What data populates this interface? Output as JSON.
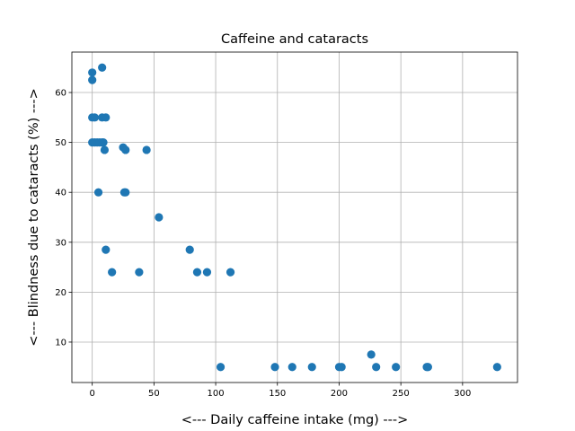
{
  "chart_data": {
    "type": "scatter",
    "title": "Caffeine and cataracts",
    "xlabel": "<--- Daily caffeine intake (mg) --->",
    "ylabel": "<--- Blindness due to cataracts (%) --->",
    "xlim": [
      -16.5,
      344.5
    ],
    "ylim": [
      1.9,
      68.1
    ],
    "xticks": [
      0,
      50,
      100,
      150,
      200,
      250,
      300
    ],
    "yticks": [
      10,
      20,
      30,
      40,
      50,
      60
    ],
    "grid": true,
    "marker_color": "#1f77b4",
    "points": [
      {
        "x": 0,
        "y": 64
      },
      {
        "x": 0,
        "y": 62.5
      },
      {
        "x": 8,
        "y": 65
      },
      {
        "x": 0,
        "y": 55
      },
      {
        "x": 2,
        "y": 55
      },
      {
        "x": 8,
        "y": 55
      },
      {
        "x": 11,
        "y": 55
      },
      {
        "x": 0,
        "y": 50
      },
      {
        "x": 2,
        "y": 50
      },
      {
        "x": 4,
        "y": 50
      },
      {
        "x": 6,
        "y": 50
      },
      {
        "x": 8,
        "y": 50
      },
      {
        "x": 9,
        "y": 50
      },
      {
        "x": 10,
        "y": 48.5
      },
      {
        "x": 25,
        "y": 49
      },
      {
        "x": 27,
        "y": 48.5
      },
      {
        "x": 44,
        "y": 48.5
      },
      {
        "x": 5,
        "y": 40
      },
      {
        "x": 26,
        "y": 40
      },
      {
        "x": 27,
        "y": 40
      },
      {
        "x": 54,
        "y": 35
      },
      {
        "x": 11,
        "y": 28.5
      },
      {
        "x": 79,
        "y": 28.5
      },
      {
        "x": 16,
        "y": 24
      },
      {
        "x": 38,
        "y": 24
      },
      {
        "x": 85,
        "y": 24
      },
      {
        "x": 93,
        "y": 24
      },
      {
        "x": 112,
        "y": 24
      },
      {
        "x": 104,
        "y": 5
      },
      {
        "x": 148,
        "y": 5
      },
      {
        "x": 162,
        "y": 5
      },
      {
        "x": 178,
        "y": 5
      },
      {
        "x": 200,
        "y": 5
      },
      {
        "x": 202,
        "y": 5
      },
      {
        "x": 230,
        "y": 5
      },
      {
        "x": 246,
        "y": 5
      },
      {
        "x": 271,
        "y": 5
      },
      {
        "x": 272,
        "y": 5
      },
      {
        "x": 328,
        "y": 5
      },
      {
        "x": 226,
        "y": 7.5
      }
    ]
  }
}
